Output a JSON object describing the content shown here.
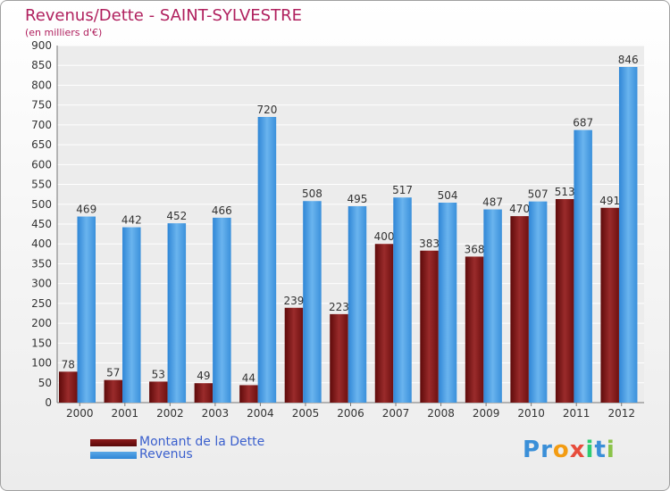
{
  "title": "Revenus/Dette - SAINT-SYLVESTRE",
  "unit_label": "(en milliers d'€)",
  "legend": {
    "debt_label": "Montant de la Dette",
    "revenue_label": "Revenus"
  },
  "logo": {
    "letters": [
      "P",
      "r",
      "o",
      "x",
      "i",
      "t",
      "i"
    ],
    "colors": [
      "#3a8fd8",
      "#3a8fd8",
      "#f39c12",
      "#e74c3c",
      "#2ecc71",
      "#3a8fd8",
      "#8bc34a"
    ]
  },
  "colors": {
    "debt": "#8b1a1a",
    "revenue": "#5aa7e6",
    "title": "#b0205e",
    "legend_text": "#3a5fcd"
  },
  "chart_data": {
    "type": "bar",
    "categories": [
      "2000",
      "2001",
      "2002",
      "2003",
      "2004",
      "2005",
      "2006",
      "2007",
      "2008",
      "2009",
      "2010",
      "2011",
      "2012"
    ],
    "series": [
      {
        "name": "Montant de la Dette",
        "values": [
          78,
          57,
          53,
          49,
          44,
          239,
          223,
          400,
          383,
          368,
          470,
          513,
          491
        ]
      },
      {
        "name": "Revenus",
        "values": [
          469,
          442,
          452,
          466,
          720,
          508,
          495,
          517,
          504,
          487,
          507,
          687,
          846
        ]
      }
    ],
    "ylim": [
      0,
      900
    ],
    "yticks": [
      0,
      50,
      100,
      150,
      200,
      250,
      300,
      350,
      400,
      450,
      500,
      550,
      600,
      650,
      700,
      750,
      800,
      850,
      900
    ],
    "grid": true,
    "legend_position": "bottom-left"
  }
}
